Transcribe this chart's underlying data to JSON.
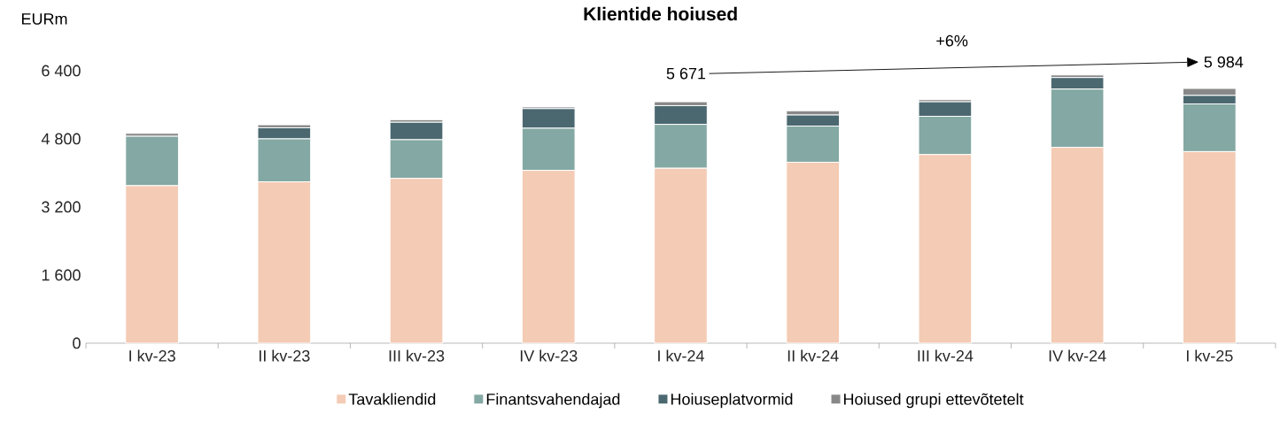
{
  "chart_data": {
    "type": "bar",
    "title": "Klientide hoiused",
    "ylabel": "EURm",
    "stacked": true,
    "categories": [
      "I kv-23",
      "II kv-23",
      "III kv-23",
      "IV kv-23",
      "I kv-24",
      "II kv-24",
      "III kv-24",
      "IV kv-24",
      "I kv-25"
    ],
    "series": [
      {
        "name": "Tavakliendid",
        "color": "#f4cbb4",
        "values": [
          3700,
          3790,
          3870,
          4060,
          4110,
          4250,
          4430,
          4600,
          4500
        ]
      },
      {
        "name": "Finantsvahendajad",
        "color": "#84a8a3",
        "values": [
          1160,
          1010,
          910,
          990,
          1030,
          850,
          900,
          1370,
          1120
        ]
      },
      {
        "name": "Hoiuseplatvormid",
        "color": "#4b6870",
        "values": [
          null,
          260,
          410,
          460,
          440,
          260,
          340,
          270,
          200
        ]
      },
      {
        "name": "Hoiused grupi ettevõtetelt",
        "color": "#888888",
        "values": [
          70,
          70,
          60,
          40,
          91,
          100,
          50,
          60,
          164
        ]
      }
    ],
    "ylim": [
      0,
      6400
    ],
    "yticks": [
      0,
      {
        "value": 1600,
        "label": "1 600"
      },
      {
        "value": 3200,
        "label": "3 200"
      },
      {
        "value": 4800,
        "label": "4 800"
      },
      {
        "value": 6400,
        "label": "6 400"
      }
    ],
    "grid": false,
    "legend": "bottom",
    "annotations": [
      {
        "text": "5 671",
        "x": "I kv-24",
        "y": 5671
      },
      {
        "text": "5 984",
        "x": "I kv-25",
        "y": 5984
      },
      "+6%"
    ]
  }
}
